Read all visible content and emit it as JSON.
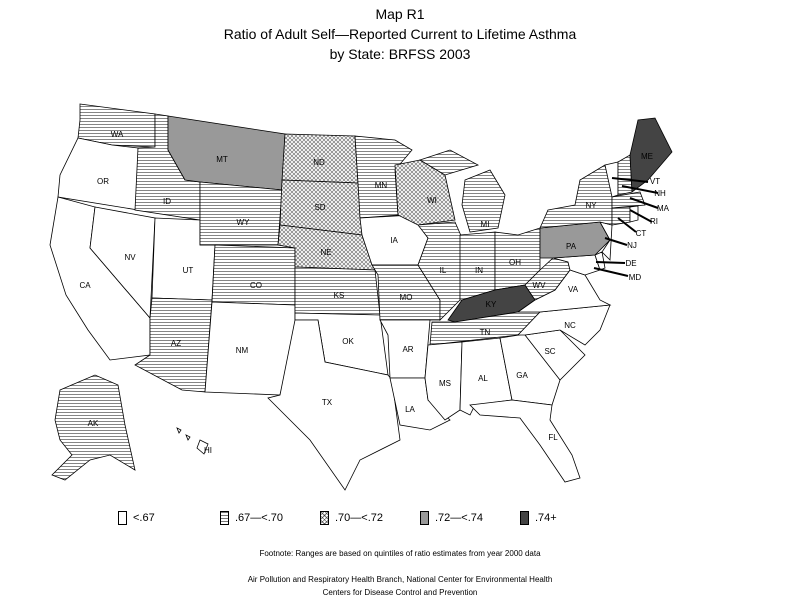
{
  "header": {
    "line1": "Map R1",
    "line2": "Ratio of Adult Self—Reported Current to Lifetime Asthma",
    "line3": "by State: BRFSS 2003"
  },
  "legend": [
    {
      "label": "<.67",
      "pattern": "none"
    },
    {
      "label": ".67—<.70",
      "pattern": "hlines"
    },
    {
      "label": ".70—<.72",
      "pattern": "crosshatch"
    },
    {
      "label": ".72—<.74",
      "pattern": "gray"
    },
    {
      "label": ".74+",
      "pattern": "dark"
    }
  ],
  "states": {
    "WA": "hlines",
    "OR": "none",
    "CA": "none",
    "ID": "hlines",
    "NV": "none",
    "UT": "none",
    "AZ": "hlines",
    "MT": "gray",
    "WY": "hlines",
    "CO": "hlines",
    "NM": "none",
    "ND": "crosshatch",
    "SD": "crosshatch",
    "NE": "crosshatch",
    "KS": "hlines",
    "OK": "none",
    "TX": "none",
    "MN": "hlines",
    "IA": "none",
    "MO": "hlines",
    "AR": "none",
    "LA": "none",
    "WI": "crosshatch",
    "IL": "hlines",
    "MI": "hlines",
    "IN": "hlines",
    "OH": "hlines",
    "KY": "dark",
    "TN": "hlines",
    "MS": "none",
    "AL": "none",
    "GA": "none",
    "FL": "none",
    "SC": "none",
    "NC": "none",
    "VA": "none",
    "WV": "hlines",
    "PA": "gray",
    "NY": "hlines",
    "ME": "dark",
    "VT": "none",
    "NH": "hlines",
    "MA": "hlines",
    "RI": "none",
    "CT": "hlines",
    "NJ": "none",
    "DE": "none",
    "MD": "none",
    "AK": "hlines",
    "HI": "none"
  },
  "footnotes": {
    "note": "Footnote: Ranges are based on quintiles of ratio estimates from year 2000 data",
    "source1": "Air Pollution and Respiratory Health Branch, National Center for Environmental Health",
    "source2": "Centers for Disease Control and Prevention"
  }
}
